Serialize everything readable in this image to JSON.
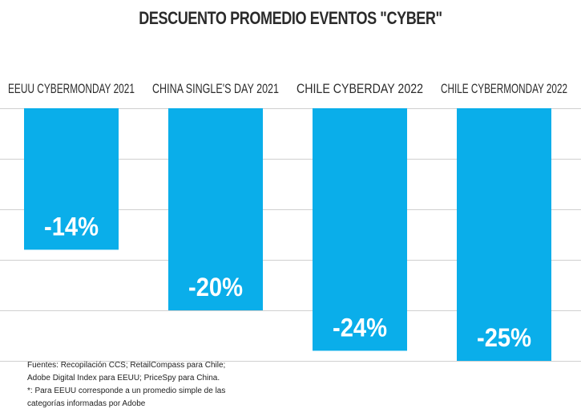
{
  "title": "DESCUENTO PROMEDIO EVENTOS \"CYBER\"",
  "chart_data": {
    "type": "bar",
    "title": "DESCUENTO PROMEDIO EVENTOS \"CYBER\"",
    "categories": [
      "EEUU CYBERMONDAY 2021",
      "CHINA SINGLE'S DAY 2021",
      "CHILE CYBERDAY 2022",
      "CHILE CYBERMONDAY 2022"
    ],
    "values": [
      -14,
      -20,
      -24,
      -25
    ],
    "value_labels": [
      "-14%",
      "-20%",
      "-24%",
      "-25%"
    ],
    "ylim": [
      -25,
      0
    ],
    "grid": true,
    "bar_color": "#0aaeea",
    "grid_color": "#d0d0d0",
    "xlabel": "",
    "ylabel": ""
  },
  "footnote": {
    "line1": "Fuentes: Recopilación CCS; RetailCompass para Chile;",
    "line2": "Adobe Digital Index para EEUU; PriceSpy para China.",
    "line3": "*: Para EEUU corresponde a un promedio simple de las",
    "line4": "categorías informadas por Adobe"
  }
}
